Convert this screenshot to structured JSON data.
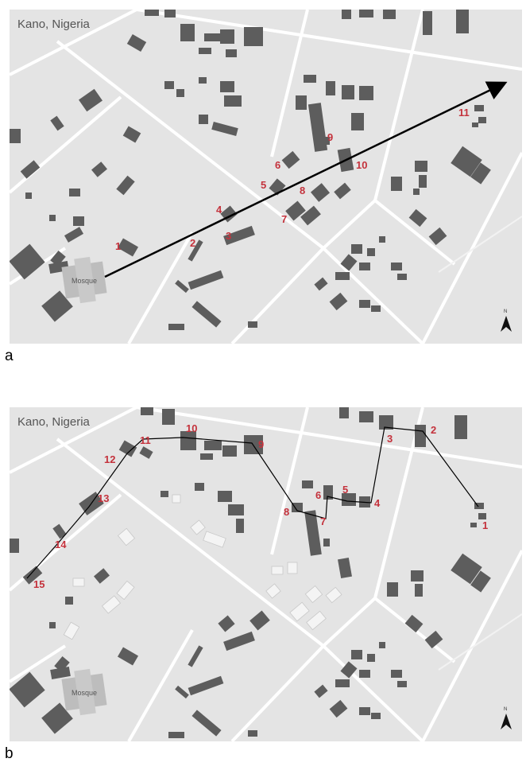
{
  "panels": [
    {
      "letter": "a",
      "place_label": "Kano, Nigeria",
      "mosque_label": "Mosque",
      "markers": [
        "1",
        "2",
        "3",
        "4",
        "5",
        "6",
        "7",
        "8",
        "9",
        "10",
        "11"
      ],
      "annotation": "arrow from mosque toward north-east",
      "north_arrow_icon": "north-arrow-icon"
    },
    {
      "letter": "b",
      "place_label": "Kano, Nigeria",
      "mosque_label": "Mosque",
      "markers": [
        "1",
        "2",
        "3",
        "4",
        "5",
        "6",
        "7",
        "8",
        "9",
        "10",
        "11",
        "12",
        "13",
        "14",
        "15"
      ],
      "annotation": "route line connecting numbered buildings",
      "north_arrow_icon": "north-arrow-icon"
    }
  ],
  "colors": {
    "map_background": "#e4e4e4",
    "road": "#ffffff",
    "building": "#5d5d5d",
    "mosque_building": "#bdbdbd",
    "marker_text": "#c4323c",
    "route_line": "#000000"
  }
}
